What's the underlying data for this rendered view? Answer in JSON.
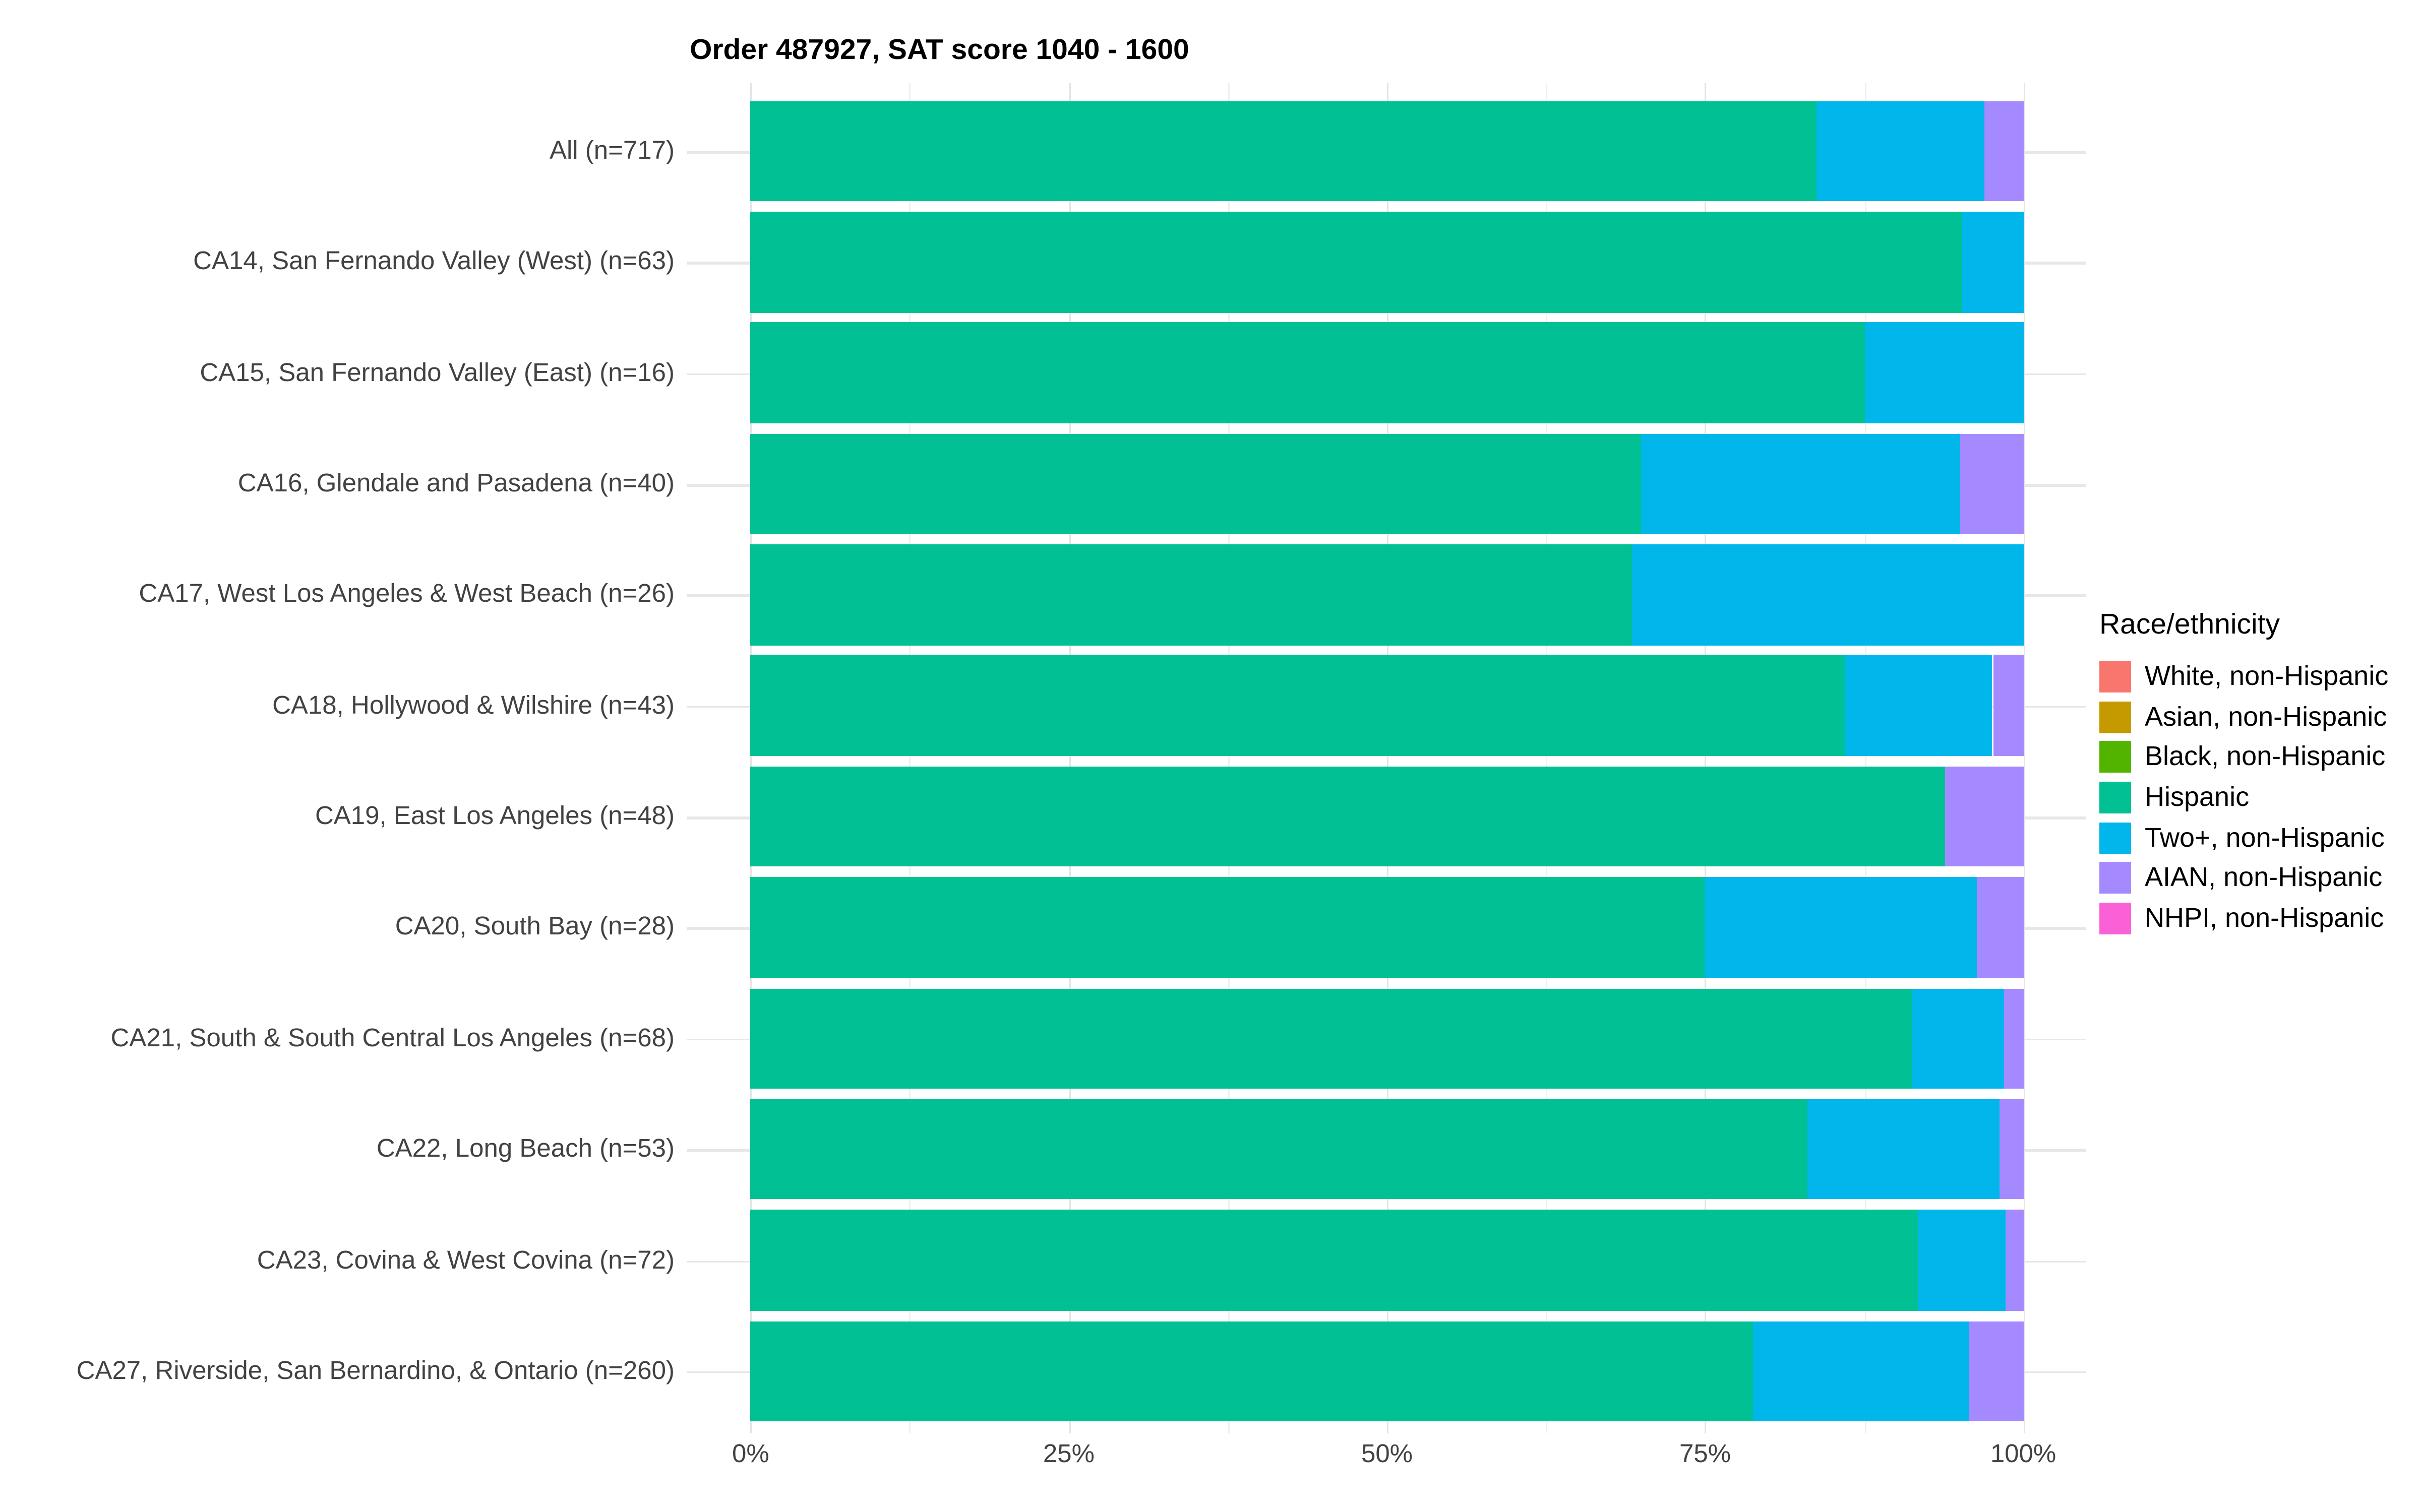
{
  "chart_data": {
    "type": "bar",
    "orientation": "horizontal",
    "stacked": true,
    "title": "Order 487927, SAT score 1040 - 1600",
    "x_axis": {
      "ticks": [
        "0%",
        "25%",
        "50%",
        "75%",
        "100%"
      ],
      "range": [
        0,
        100
      ],
      "unit": "percent"
    },
    "categories": [
      "All (n=717)",
      "CA14, San Fernando Valley (West) (n=63)",
      "CA15, San Fernando Valley (East) (n=16)",
      "CA16, Glendale and Pasadena (n=40)",
      "CA17, West Los Angeles & West Beach (n=26)",
      "CA18, Hollywood & Wilshire (n=43)",
      "CA19, East Los Angeles (n=48)",
      "CA20, South Bay (n=28)",
      "CA21, South & South Central Los Angeles (n=68)",
      "CA22, Long Beach (n=53)",
      "CA23, Covina & West Covina (n=72)",
      "CA27, Riverside, San Bernardino, & Ontario (n=260)"
    ],
    "series": [
      {
        "name": "Hispanic",
        "color": "#00C094",
        "values": [
          83.7,
          95.2,
          87.5,
          70.0,
          69.2,
          86.0,
          93.8,
          75.0,
          91.2,
          83.0,
          91.7,
          78.8
        ]
      },
      {
        "name": "Two+, non-Hispanic",
        "color": "#00B6EB",
        "values": [
          13.2,
          4.8,
          12.5,
          25.0,
          30.8,
          11.6,
          0.0,
          21.4,
          7.3,
          15.1,
          6.9,
          17.0
        ]
      },
      {
        "name": "AIAN, non-Hispanic",
        "color": "#A58AFF",
        "values": [
          3.1,
          0.0,
          0.0,
          5.0,
          0.0,
          2.4,
          6.2,
          3.6,
          1.5,
          1.9,
          1.4,
          4.2
        ]
      }
    ],
    "legend": {
      "title": "Race/ethnicity",
      "position": "right",
      "entries": [
        {
          "label": "White, non-Hispanic",
          "color": "#F8766D"
        },
        {
          "label": "Asian, non-Hispanic",
          "color": "#C49A00"
        },
        {
          "label": "Black, non-Hispanic",
          "color": "#53B400"
        },
        {
          "label": "Hispanic",
          "color": "#00C094"
        },
        {
          "label": "Two+, non-Hispanic",
          "color": "#00B6EB"
        },
        {
          "label": "AIAN, non-Hispanic",
          "color": "#A58AFF"
        },
        {
          "label": "NHPI, non-Hispanic",
          "color": "#FB61D7"
        }
      ]
    },
    "grid": {
      "vertical_major_pct": [
        0,
        25,
        50,
        75,
        100
      ],
      "vertical_minor_pct": [
        12.5,
        37.5,
        62.5,
        87.5
      ],
      "horizontal": "category-centers"
    }
  }
}
